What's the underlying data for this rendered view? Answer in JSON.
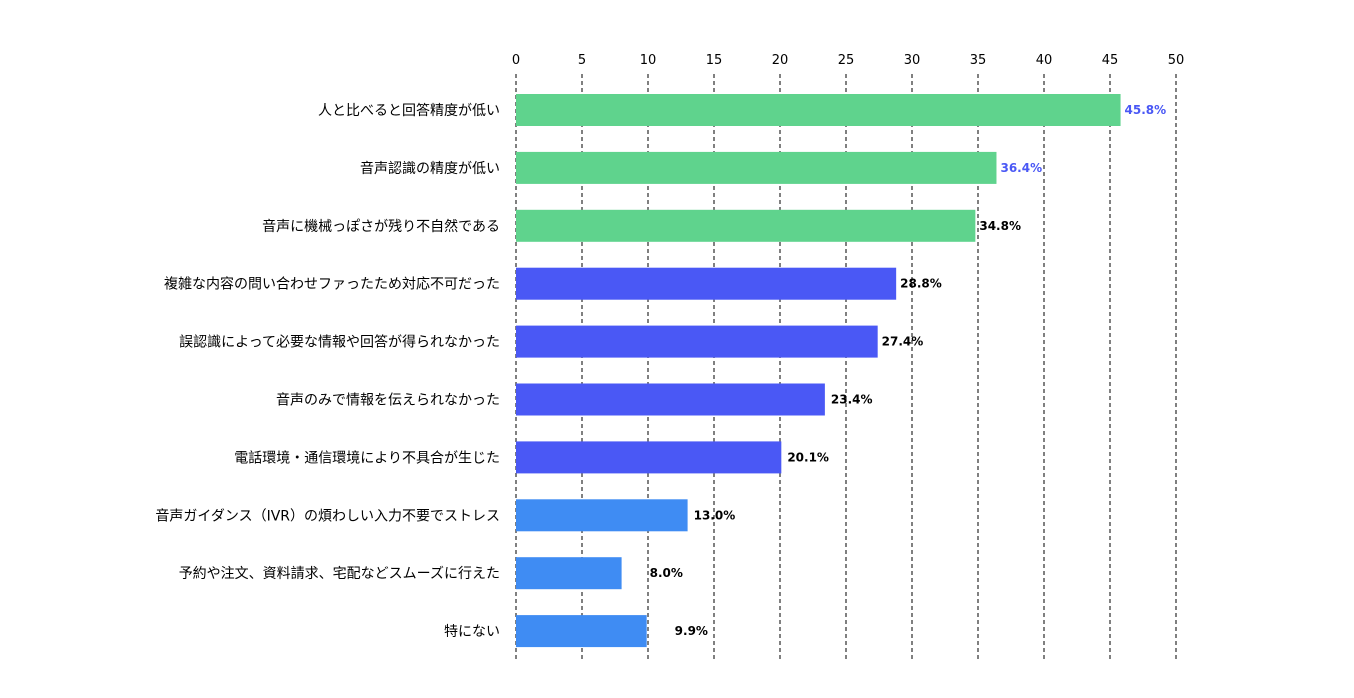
{
  "chart_data": {
    "type": "bar",
    "orientation": "horizontal",
    "title": "",
    "xlabel": "",
    "ylabel": "",
    "xlim": [
      0,
      50
    ],
    "ticks": [
      "0",
      "5",
      "10",
      "15",
      "20",
      "25",
      "30",
      "35",
      "40",
      "45",
      "50"
    ],
    "grid": true,
    "categories": [
      "人と比べると回答精度が低い",
      "音声認識の精度が低い",
      "音声に機械っぽさが残り不自然である",
      "複雑な内容の問い合わせファったため対応不可だった",
      "誤認識によって必要な情報や回答が得られなかった",
      "音声のみで情報を伝えられなかった",
      "電話環境・通信環境により不具合が生じた",
      "音声ガイダンス（IVR）の煩わしい入力不要でストレス",
      "予約や注文、資料請求、宅配などスムーズに行えた",
      "特にない"
    ],
    "values": [
      45.8,
      36.4,
      34.8,
      28.8,
      27.4,
      23.4,
      20.1,
      13.0,
      8.0,
      9.9
    ],
    "value_labels": [
      "45.8%",
      "36.4%",
      "34.8%",
      "28.8%",
      "27.4%",
      "23.4%",
      "20.1%",
      "13.0%",
      "8.0%",
      "9.9%"
    ],
    "bar_colors": [
      "#5fd38d",
      "#5fd38d",
      "#5fd38d",
      "#4a58f5",
      "#4a58f5",
      "#4a58f5",
      "#4a58f5",
      "#3f8cf3",
      "#3f8cf3",
      "#3f8cf3"
    ],
    "label_colors": [
      "#4a58f5",
      "#4a58f5",
      "#000000",
      "#000000",
      "#000000",
      "#000000",
      "#000000",
      "#000000",
      "#000000",
      "#000000"
    ]
  }
}
